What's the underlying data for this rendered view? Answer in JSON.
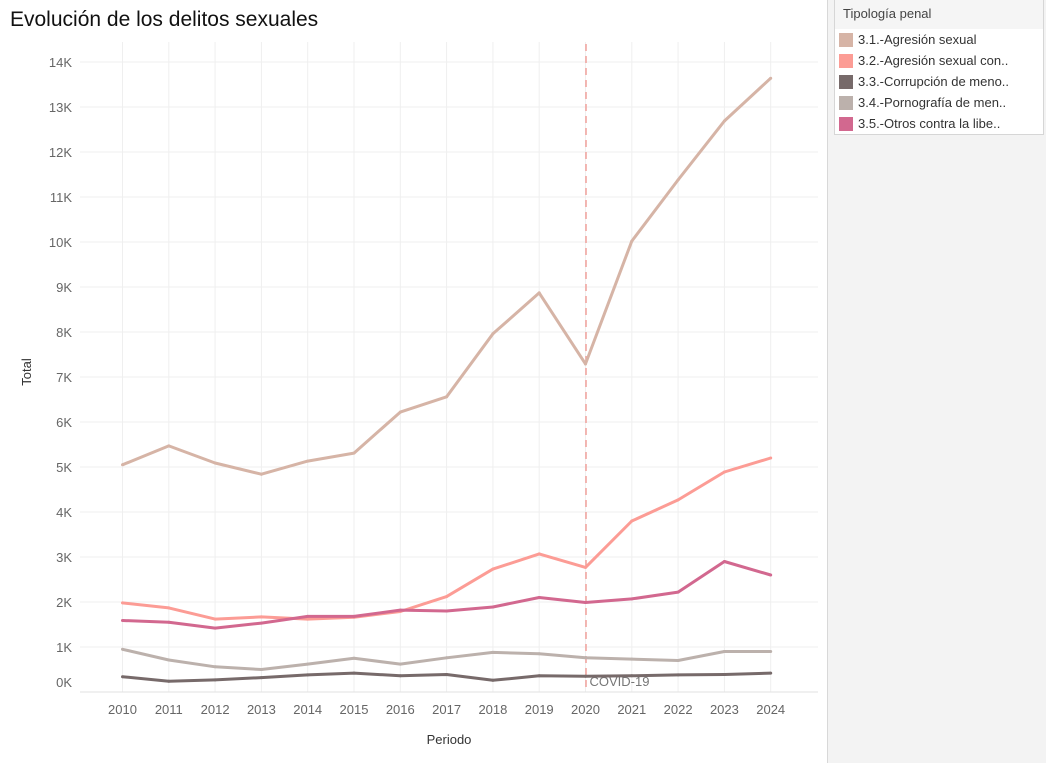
{
  "chart_data": {
    "type": "line",
    "title": "Evolución de los delitos sexuales",
    "xlabel": "Periodo",
    "ylabel": "Total",
    "x": [
      2010,
      2011,
      2012,
      2013,
      2014,
      2015,
      2016,
      2017,
      2018,
      2019,
      2020,
      2021,
      2022,
      2023,
      2024
    ],
    "yticks": [
      0,
      1000,
      2000,
      3000,
      4000,
      5000,
      6000,
      7000,
      8000,
      9000,
      10000,
      11000,
      12000,
      13000,
      14000
    ],
    "ytick_labels": [
      "0K",
      "1K",
      "2K",
      "3K",
      "4K",
      "5K",
      "6K",
      "7K",
      "8K",
      "9K",
      "10K",
      "11K",
      "12K",
      "13K",
      "14K"
    ],
    "ylim": [
      0,
      14500
    ],
    "grid": true,
    "legend_position": "right",
    "legend_title": "Tipología penal",
    "series": [
      {
        "name": "3.1.-Agresión sexual",
        "color": "#d6b4a6",
        "values": [
          5050,
          5470,
          5090,
          4840,
          5130,
          5310,
          6220,
          6560,
          7960,
          8870,
          7290,
          10020,
          11380,
          12690,
          13640
        ]
      },
      {
        "name": "3.2.-Agresión sexual con..",
        "color": "#fc9c95",
        "values": [
          1980,
          1870,
          1620,
          1670,
          1620,
          1660,
          1790,
          2120,
          2730,
          3070,
          2770,
          3800,
          4270,
          4890,
          5200
        ]
      },
      {
        "name": "3.3.-Corrupción de meno..",
        "color": "#776a6a",
        "values": [
          340,
          240,
          270,
          320,
          380,
          420,
          360,
          390,
          260,
          360,
          350,
          360,
          380,
          390,
          420
        ]
      },
      {
        "name": "3.4.-Pornografía de men..",
        "color": "#bcb1ac",
        "values": [
          950,
          710,
          560,
          500,
          620,
          750,
          620,
          760,
          880,
          850,
          760,
          730,
          700,
          900,
          900
        ]
      },
      {
        "name": "3.5.-Otros contra la libe..",
        "color": "#d2688f",
        "values": [
          1590,
          1550,
          1420,
          1530,
          1680,
          1680,
          1820,
          1800,
          1890,
          2100,
          1990,
          2070,
          2220,
          2900,
          2600
        ]
      }
    ],
    "annotations": [
      {
        "x": 2020,
        "type": "reference-line",
        "label": "COVID-19",
        "color": "#f0a09c"
      }
    ]
  }
}
